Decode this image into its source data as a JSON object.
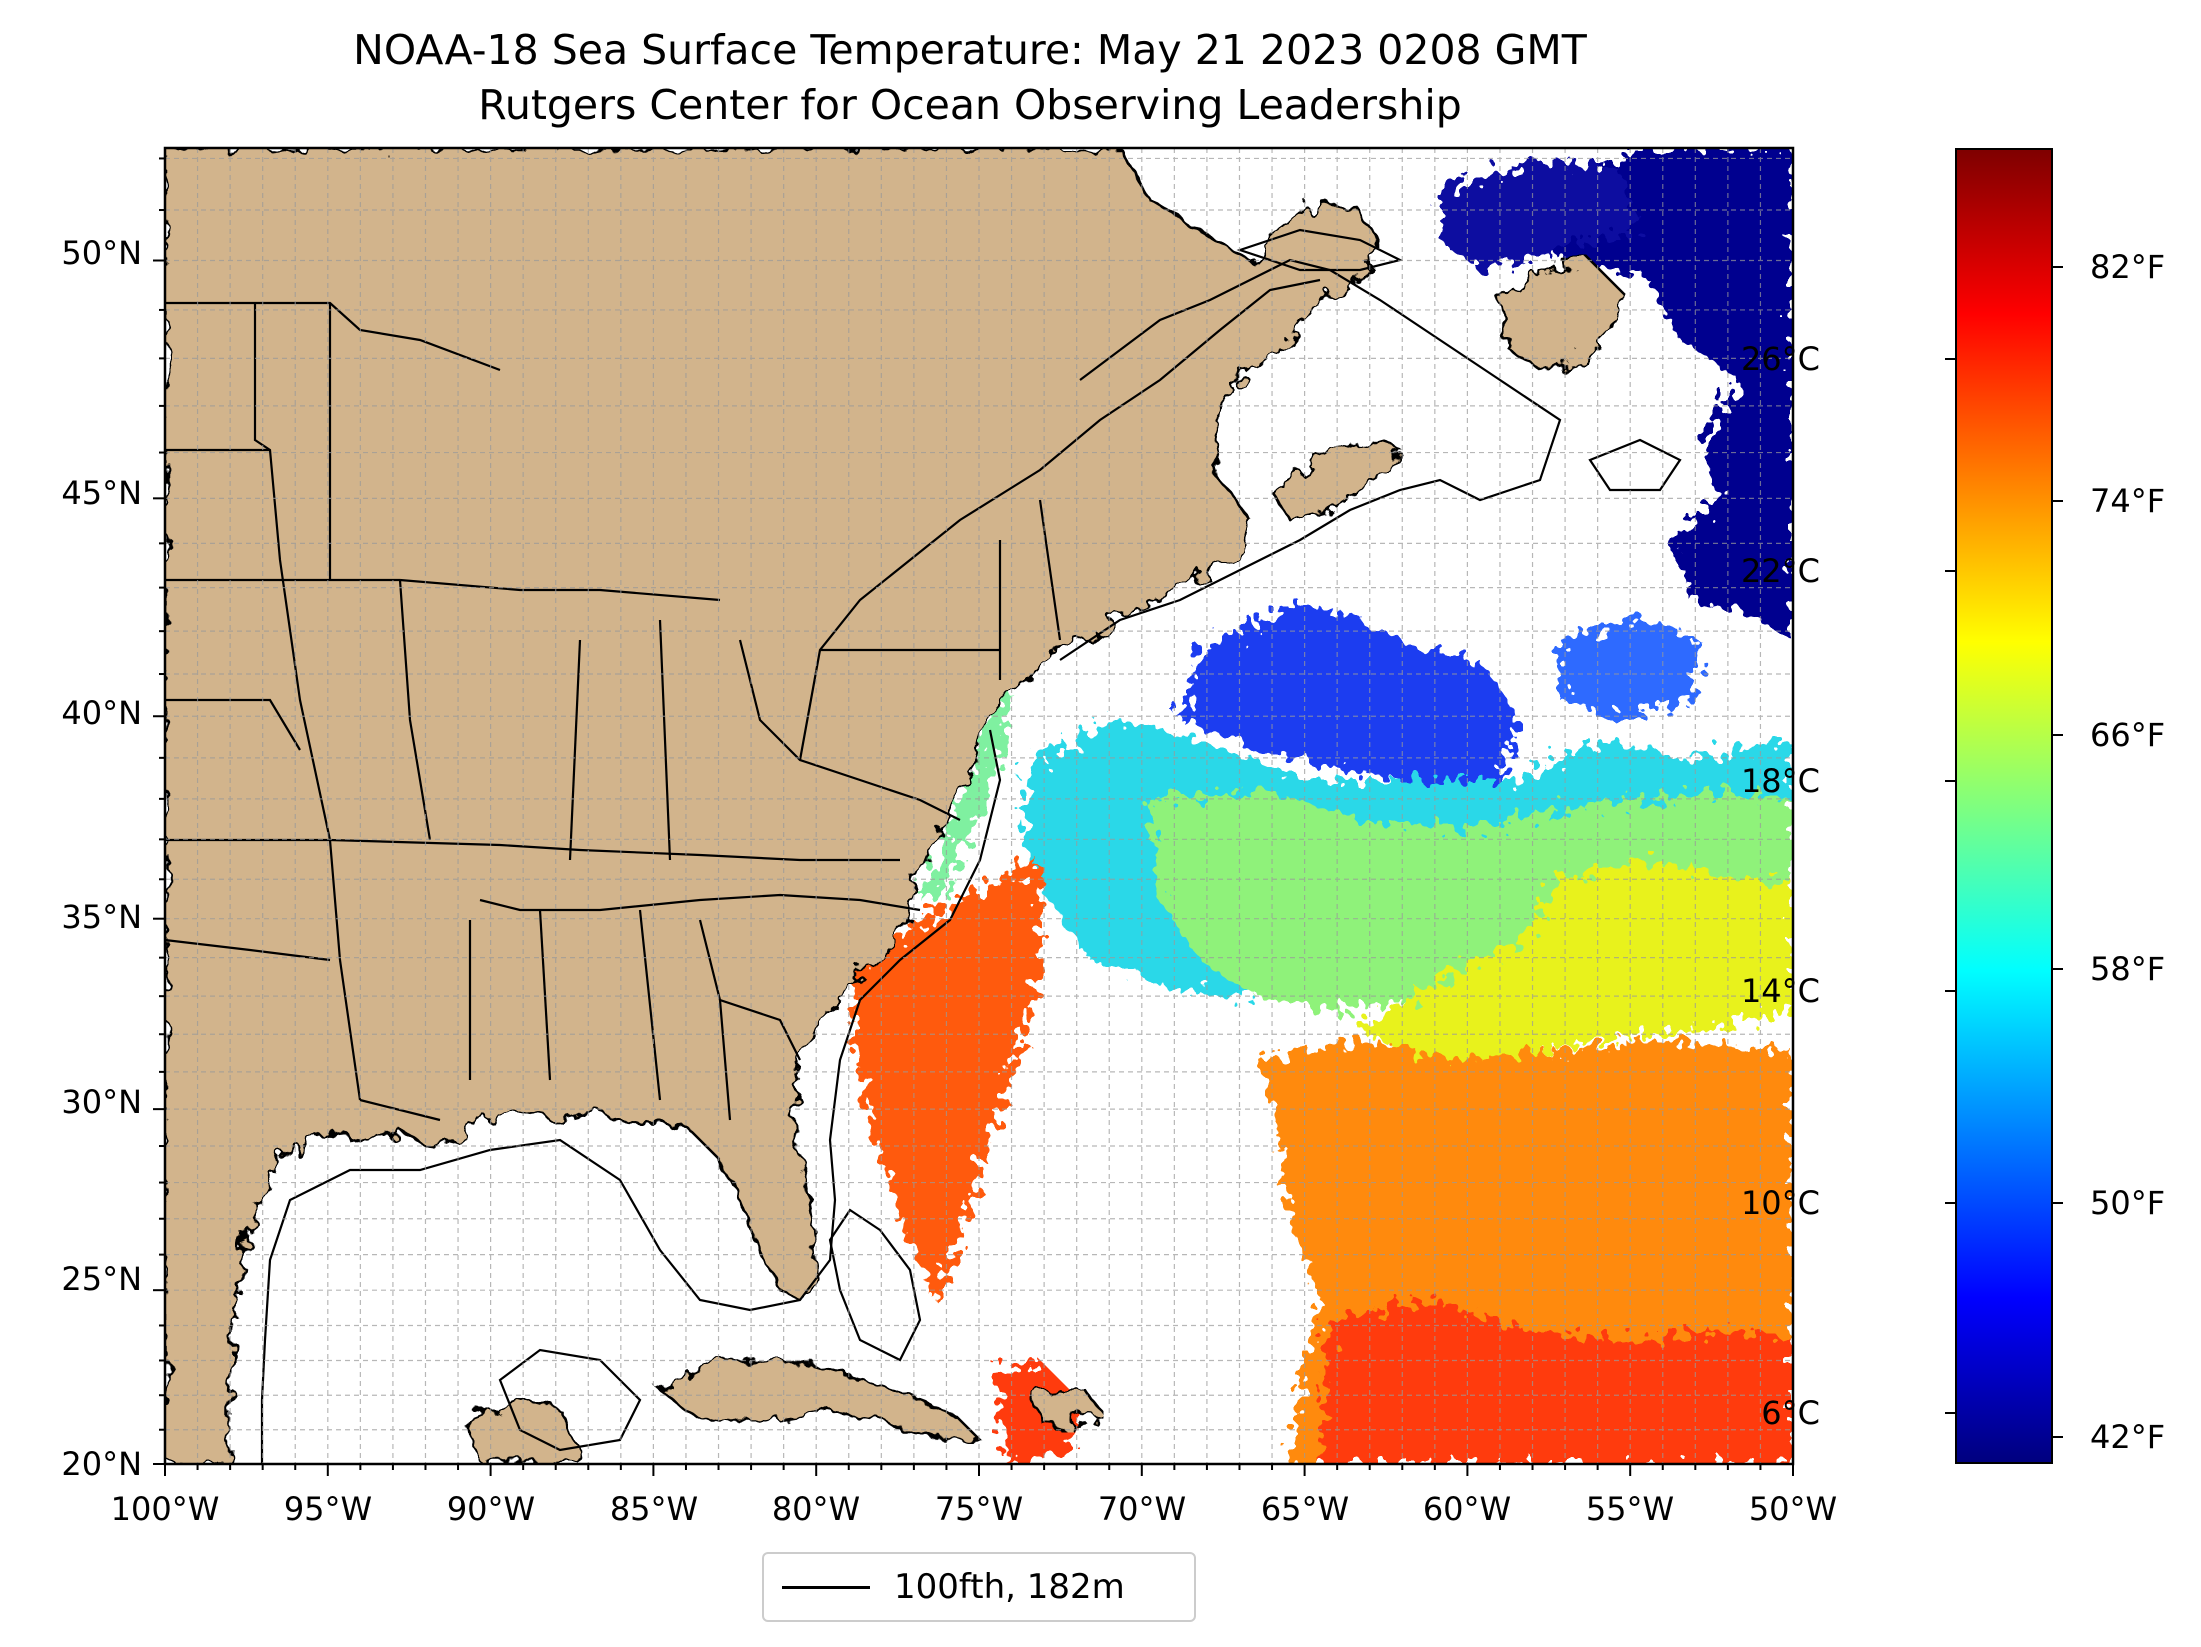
{
  "title": "NOAA-18 Sea Surface Temperature: May 21 2023 0208 GMT",
  "subtitle": "Rutgers Center for Ocean Observing Leadership",
  "map": {
    "lon_range": [
      -100,
      -50
    ],
    "lat_range": [
      20,
      52.2
    ],
    "latitude_ticks": [
      "20°N",
      "25°N",
      "30°N",
      "35°N",
      "40°N",
      "45°N",
      "50°N"
    ],
    "longitude_ticks": [
      "100°W",
      "95°W",
      "90°W",
      "85°W",
      "80°W",
      "75°W",
      "70°W",
      "65°W",
      "60°W",
      "55°W",
      "50°W"
    ],
    "grid": "on",
    "land_color": "#d2b48c",
    "lake_color": "#9cbbe8",
    "no_data_color": "#ffffff",
    "legend": {
      "label": "100fth, 182m",
      "placement": "bottom-center"
    }
  },
  "colorbar": {
    "colormap": "jet",
    "celsius_ticks": [
      "6°C",
      "10°C",
      "14°C",
      "18°C",
      "22°C",
      "26°C"
    ],
    "fahrenheit_ticks": [
      "42°F",
      "50°F",
      "58°F",
      "66°F",
      "74°F",
      "82°F"
    ],
    "colors": [
      "#00007f",
      "#0000ff",
      "#007fff",
      "#00ffff",
      "#7fff7f",
      "#ffff00",
      "#ff7f00",
      "#ff0000",
      "#7f0000"
    ]
  }
}
